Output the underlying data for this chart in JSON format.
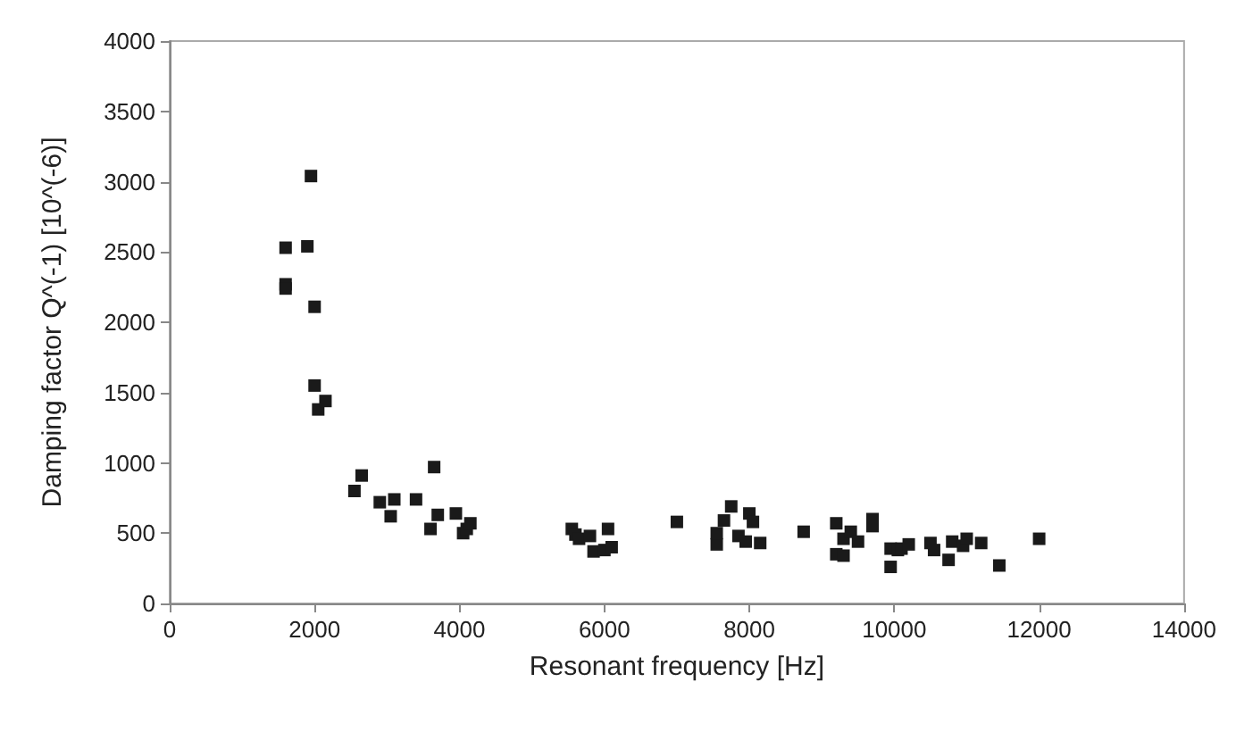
{
  "chart_data": {
    "type": "scatter",
    "xlabel": "Resonant frequency [Hz]",
    "ylabel": "Damping factor Q^(-1) [10^(-6)]",
    "x": [
      1600,
      1900,
      1950,
      1600,
      1600,
      2000,
      2000,
      2050,
      2150,
      2550,
      2650,
      2900,
      3050,
      3100,
      3400,
      3600,
      3650,
      3700,
      3950,
      4050,
      4100,
      4150,
      5550,
      5600,
      5650,
      5800,
      5850,
      6000,
      6050,
      6100,
      7000,
      7550,
      7550,
      7650,
      7750,
      7850,
      7950,
      8000,
      8050,
      8150,
      8750,
      9200,
      9200,
      9300,
      9300,
      9400,
      9500,
      9700,
      9700,
      9950,
      9950,
      10050,
      10100,
      10200,
      10500,
      10550,
      10750,
      10800,
      10950,
      11000,
      11200,
      11450,
      12000
    ],
    "values": [
      2530,
      2540,
      3040,
      2270,
      2240,
      2110,
      1550,
      1380,
      1440,
      800,
      910,
      720,
      620,
      740,
      740,
      530,
      970,
      630,
      640,
      500,
      530,
      570,
      530,
      490,
      460,
      480,
      370,
      380,
      530,
      400,
      580,
      420,
      500,
      590,
      690,
      480,
      440,
      640,
      580,
      430,
      510,
      350,
      570,
      460,
      340,
      510,
      440,
      600,
      550,
      260,
      390,
      380,
      390,
      420,
      430,
      380,
      310,
      440,
      410,
      460,
      430,
      270,
      460
    ],
    "color": "#1a1a1a",
    "marker": "square",
    "xlim": [
      0,
      14000
    ],
    "xticks": [
      0,
      2000,
      4000,
      6000,
      8000,
      10000,
      12000,
      14000
    ],
    "ylim": [
      0,
      4000
    ],
    "yticks": [
      0,
      500,
      1000,
      1500,
      2000,
      2500,
      3000,
      3500,
      4000
    ],
    "grid": false
  }
}
